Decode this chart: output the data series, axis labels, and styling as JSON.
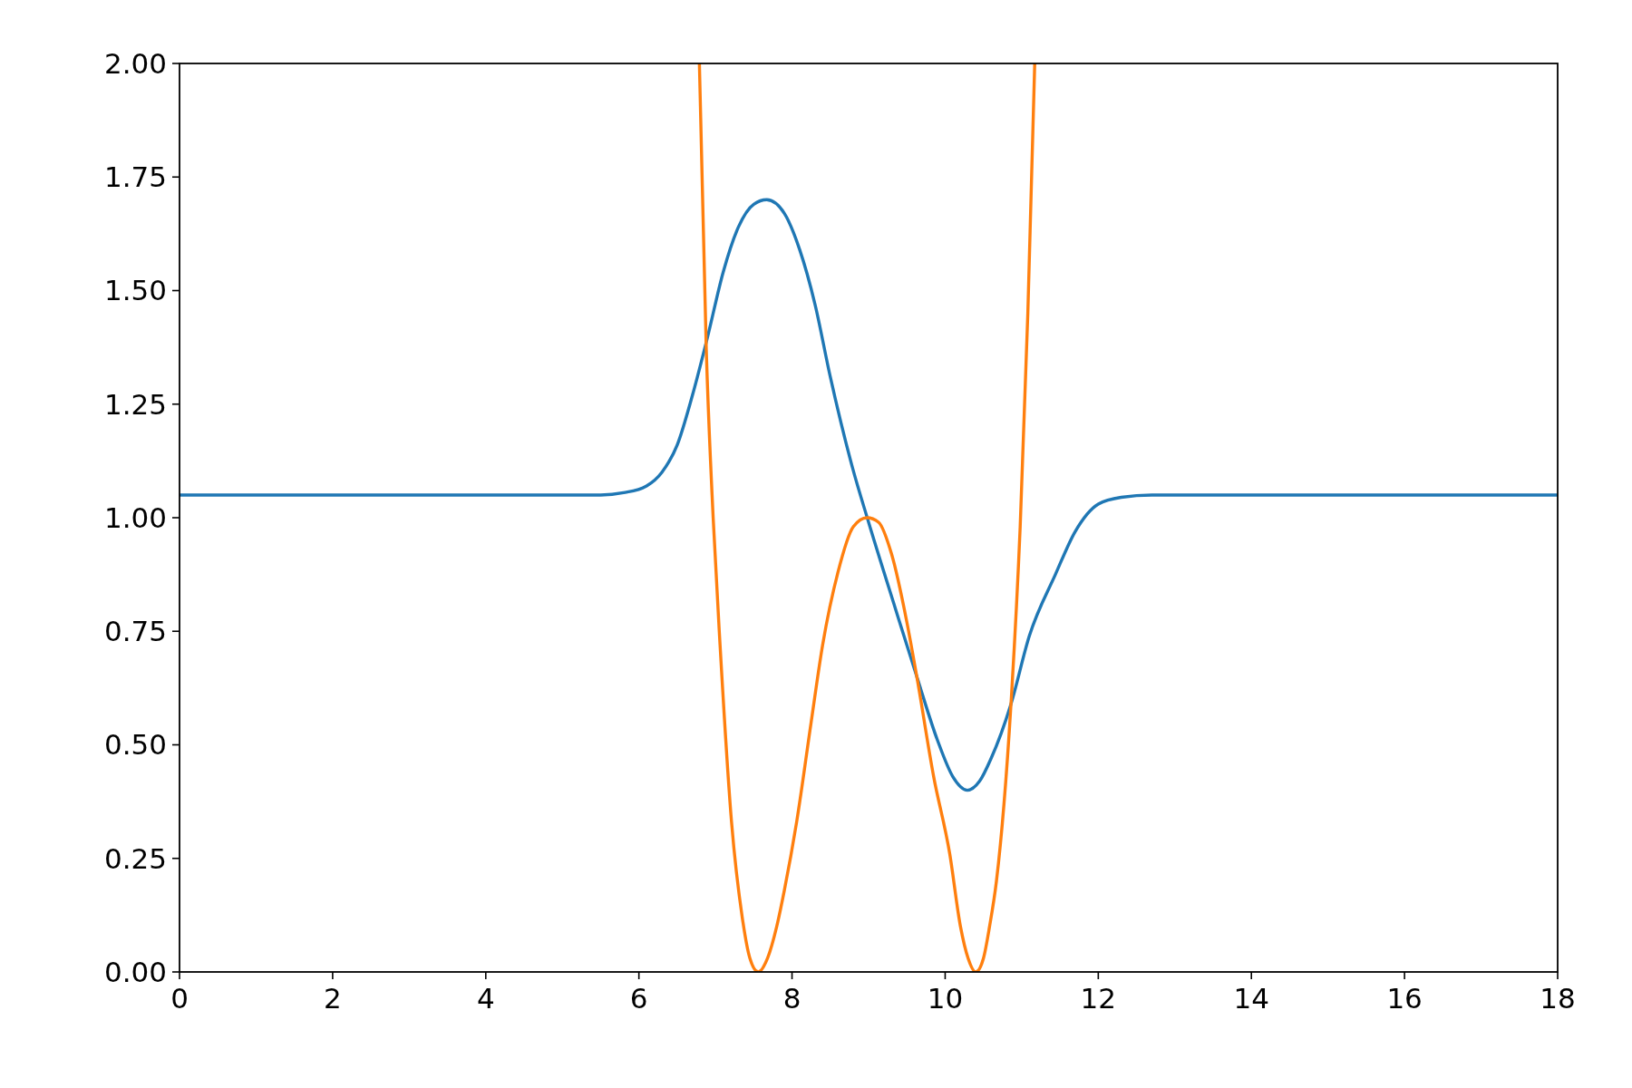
{
  "chart_data": {
    "type": "line",
    "xlim": [
      0,
      18
    ],
    "ylim": [
      0,
      2
    ],
    "xticks": [
      0,
      2,
      4,
      6,
      8,
      10,
      12,
      14,
      16,
      18
    ],
    "yticks": [
      {
        "value": 0,
        "label": "0.00"
      },
      {
        "value": 0.25,
        "label": "0.25"
      },
      {
        "value": 0.5,
        "label": "0.50"
      },
      {
        "value": 0.75,
        "label": "0.75"
      },
      {
        "value": 1,
        "label": "1.00"
      },
      {
        "value": 1.25,
        "label": "1.25"
      },
      {
        "value": 1.5,
        "label": "1.50"
      },
      {
        "value": 1.75,
        "label": "1.75"
      },
      {
        "value": 2,
        "label": "2.00"
      }
    ],
    "grid": false,
    "line_style": "solid",
    "series": [
      {
        "color": "#1f77b4",
        "x": [
          0,
          5.5,
          5.8,
          6.1,
          6.3,
          6.5,
          6.7,
          6.9,
          7.1,
          7.3,
          7.5,
          7.67,
          7.9,
          8.1,
          8.3,
          8.5,
          8.79,
          9.0,
          9.35,
          9.63,
          9.9,
          10.1,
          10.29,
          10.45,
          10.6,
          10.86,
          11.1,
          11.44,
          11.7,
          12.0,
          12.3,
          12.7,
          18
        ],
        "values": [
          1.05,
          1.05,
          1.055,
          1.07,
          1.1,
          1.16,
          1.27,
          1.4,
          1.54,
          1.64,
          1.69,
          1.7,
          1.67,
          1.59,
          1.47,
          1.31,
          1.11,
          0.99,
          0.8,
          0.65,
          0.51,
          0.43,
          0.4,
          0.42,
          0.47,
          0.59,
          0.74,
          0.875,
          0.97,
          1.03,
          1.045,
          1.05,
          1.05
        ]
      },
      {
        "color": "#ff7f0e",
        "x": [
          6.79,
          6.88,
          6.97,
          7.06,
          7.21,
          7.35,
          7.45,
          7.56,
          7.68,
          7.8,
          7.9,
          8.06,
          8.25,
          8.4,
          8.6,
          8.8,
          8.98,
          9.13,
          9.3,
          9.5,
          9.63,
          9.85,
          10.06,
          10.2,
          10.3,
          10.4,
          10.5,
          10.58,
          10.67,
          10.86,
          10.98,
          11.08,
          11.17
        ],
        "values": [
          2.0,
          1.37,
          1.0,
          0.72,
          0.33,
          0.12,
          0.03,
          0,
          0.03,
          0.1,
          0.18,
          0.33,
          0.55,
          0.72,
          0.88,
          0.98,
          1.0,
          0.99,
          0.92,
          0.77,
          0.65,
          0.43,
          0.26,
          0.1,
          0.03,
          0,
          0.03,
          0.1,
          0.2,
          0.59,
          0.98,
          1.45,
          2.0
        ]
      }
    ]
  }
}
